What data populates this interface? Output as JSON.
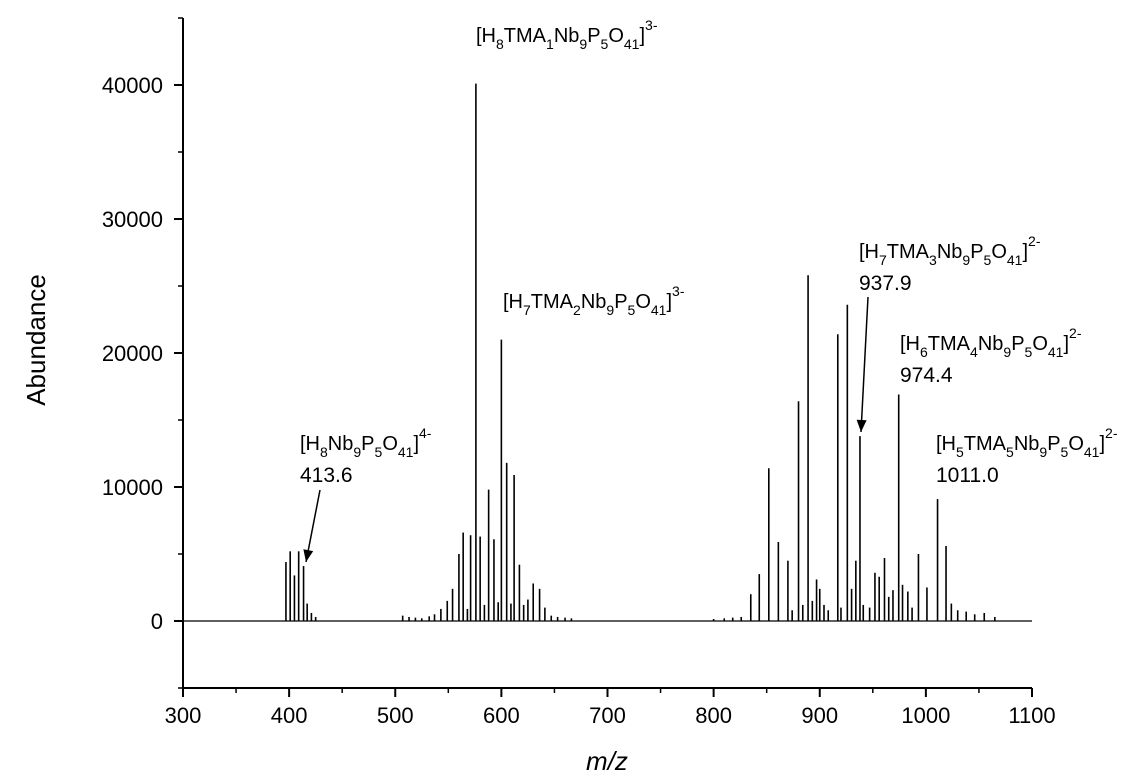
{
  "chart_data": {
    "type": "line",
    "xlabel": "m/z",
    "ylabel": "Abundance",
    "xlim": [
      300,
      1100
    ],
    "ylim": [
      -5000,
      45000
    ],
    "x_ticks": [
      300,
      400,
      500,
      600,
      700,
      800,
      900,
      1000,
      1100
    ],
    "y_ticks": [
      0,
      10000,
      20000,
      30000,
      40000
    ],
    "grid": false,
    "peaks": [
      {
        "x": 397,
        "y": 4400
      },
      {
        "x": 401,
        "y": 5200
      },
      {
        "x": 405,
        "y": 3400
      },
      {
        "x": 409,
        "y": 5200
      },
      {
        "x": 413.6,
        "y": 4100
      },
      {
        "x": 417,
        "y": 1300
      },
      {
        "x": 421,
        "y": 600
      },
      {
        "x": 425,
        "y": 300
      },
      {
        "x": 507,
        "y": 400
      },
      {
        "x": 513,
        "y": 300
      },
      {
        "x": 519,
        "y": 250
      },
      {
        "x": 525,
        "y": 200
      },
      {
        "x": 532,
        "y": 350
      },
      {
        "x": 537,
        "y": 500
      },
      {
        "x": 543,
        "y": 900
      },
      {
        "x": 549,
        "y": 1500
      },
      {
        "x": 554,
        "y": 2400
      },
      {
        "x": 560,
        "y": 5000
      },
      {
        "x": 564,
        "y": 6600
      },
      {
        "x": 568,
        "y": 900
      },
      {
        "x": 571,
        "y": 6400
      },
      {
        "x": 576,
        "y": 40100
      },
      {
        "x": 580,
        "y": 6300
      },
      {
        "x": 584,
        "y": 1200
      },
      {
        "x": 588,
        "y": 9800
      },
      {
        "x": 593,
        "y": 6100
      },
      {
        "x": 597,
        "y": 1400
      },
      {
        "x": 600,
        "y": 21000
      },
      {
        "x": 605,
        "y": 11800
      },
      {
        "x": 609,
        "y": 1300
      },
      {
        "x": 612,
        "y": 10900
      },
      {
        "x": 617,
        "y": 4200
      },
      {
        "x": 621,
        "y": 1200
      },
      {
        "x": 625,
        "y": 1600
      },
      {
        "x": 630,
        "y": 2800
      },
      {
        "x": 636,
        "y": 2400
      },
      {
        "x": 641,
        "y": 1000
      },
      {
        "x": 647,
        "y": 400
      },
      {
        "x": 653,
        "y": 300
      },
      {
        "x": 660,
        "y": 250
      },
      {
        "x": 666,
        "y": 200
      },
      {
        "x": 800,
        "y": 150
      },
      {
        "x": 810,
        "y": 200
      },
      {
        "x": 818,
        "y": 250
      },
      {
        "x": 826,
        "y": 300
      },
      {
        "x": 835,
        "y": 2000
      },
      {
        "x": 843,
        "y": 3500
      },
      {
        "x": 852,
        "y": 11400
      },
      {
        "x": 861,
        "y": 5900
      },
      {
        "x": 870,
        "y": 4500
      },
      {
        "x": 874,
        "y": 800
      },
      {
        "x": 880,
        "y": 16400
      },
      {
        "x": 884,
        "y": 1200
      },
      {
        "x": 889,
        "y": 25800
      },
      {
        "x": 893,
        "y": 1500
      },
      {
        "x": 897,
        "y": 3100
      },
      {
        "x": 900,
        "y": 2400
      },
      {
        "x": 904,
        "y": 1200
      },
      {
        "x": 908,
        "y": 800
      },
      {
        "x": 917,
        "y": 21400
      },
      {
        "x": 920,
        "y": 1000
      },
      {
        "x": 926,
        "y": 23600
      },
      {
        "x": 930,
        "y": 2400
      },
      {
        "x": 934,
        "y": 4500
      },
      {
        "x": 937.9,
        "y": 13800
      },
      {
        "x": 941,
        "y": 1200
      },
      {
        "x": 947,
        "y": 1000
      },
      {
        "x": 952,
        "y": 3600
      },
      {
        "x": 956,
        "y": 3300
      },
      {
        "x": 961,
        "y": 4700
      },
      {
        "x": 965,
        "y": 1800
      },
      {
        "x": 969,
        "y": 2300
      },
      {
        "x": 974.4,
        "y": 16900
      },
      {
        "x": 978,
        "y": 2700
      },
      {
        "x": 983,
        "y": 2200
      },
      {
        "x": 987,
        "y": 1000
      },
      {
        "x": 993,
        "y": 5000
      },
      {
        "x": 1001,
        "y": 2500
      },
      {
        "x": 1011,
        "y": 9100
      },
      {
        "x": 1019,
        "y": 5600
      },
      {
        "x": 1024,
        "y": 1300
      },
      {
        "x": 1030,
        "y": 800
      },
      {
        "x": 1038,
        "y": 700
      },
      {
        "x": 1046,
        "y": 500
      },
      {
        "x": 1055,
        "y": 600
      },
      {
        "x": 1065,
        "y": 300
      }
    ],
    "annotations": [
      {
        "id": "a1",
        "base": "[H",
        "parts": [
          [
            "8",
            "sub"
          ],
          [
            "TMA",
            ""
          ],
          [
            "1",
            "sub"
          ],
          [
            "Nb",
            ""
          ],
          [
            "9",
            "sub"
          ],
          [
            "P",
            ""
          ],
          [
            "5",
            "sub"
          ],
          [
            "O",
            ""
          ],
          [
            "41",
            "sub"
          ],
          [
            "]",
            ""
          ],
          [
            "3-",
            "sup"
          ]
        ],
        "value": ""
      },
      {
        "id": "a2",
        "base": "[H",
        "parts": [
          [
            "7",
            "sub"
          ],
          [
            "TMA",
            ""
          ],
          [
            "2",
            "sub"
          ],
          [
            "Nb",
            ""
          ],
          [
            "9",
            "sub"
          ],
          [
            "P",
            ""
          ],
          [
            "5",
            "sub"
          ],
          [
            "O",
            ""
          ],
          [
            "41",
            "sub"
          ],
          [
            "]",
            ""
          ],
          [
            "3-",
            "sup"
          ]
        ],
        "value": ""
      },
      {
        "id": "a3",
        "base": "[H",
        "parts": [
          [
            "8",
            "sub"
          ],
          [
            "Nb",
            ""
          ],
          [
            "9",
            "sub"
          ],
          [
            "P",
            ""
          ],
          [
            "5",
            "sub"
          ],
          [
            "O",
            ""
          ],
          [
            "41",
            "sub"
          ],
          [
            "]",
            ""
          ],
          [
            "4-",
            "sup"
          ]
        ],
        "value": "413.6"
      },
      {
        "id": "a4",
        "base": "[H",
        "parts": [
          [
            "7",
            "sub"
          ],
          [
            "TMA",
            ""
          ],
          [
            "3",
            "sub"
          ],
          [
            "Nb",
            ""
          ],
          [
            "9",
            "sub"
          ],
          [
            "P",
            ""
          ],
          [
            "5",
            "sub"
          ],
          [
            "O",
            ""
          ],
          [
            "41",
            "sub"
          ],
          [
            "]",
            ""
          ],
          [
            "2-",
            "sup"
          ]
        ],
        "value": "937.9"
      },
      {
        "id": "a5",
        "base": "[H",
        "parts": [
          [
            "6",
            "sub"
          ],
          [
            "TMA",
            ""
          ],
          [
            "4",
            "sub"
          ],
          [
            "Nb",
            ""
          ],
          [
            "9",
            "sub"
          ],
          [
            "P",
            ""
          ],
          [
            "5",
            "sub"
          ],
          [
            "O",
            ""
          ],
          [
            "41",
            "sub"
          ],
          [
            "]",
            ""
          ],
          [
            "2-",
            "sup"
          ]
        ],
        "value": "974.4"
      },
      {
        "id": "a6",
        "base": "[H",
        "parts": [
          [
            "5",
            "sub"
          ],
          [
            "TMA",
            ""
          ],
          [
            "5",
            "sub"
          ],
          [
            "Nb",
            ""
          ],
          [
            "9",
            "sub"
          ],
          [
            "P",
            ""
          ],
          [
            "5",
            "sub"
          ],
          [
            "O",
            ""
          ],
          [
            "41",
            "sub"
          ],
          [
            "]",
            ""
          ],
          [
            "2-",
            "sup"
          ]
        ],
        "value": "1011.0"
      }
    ]
  }
}
